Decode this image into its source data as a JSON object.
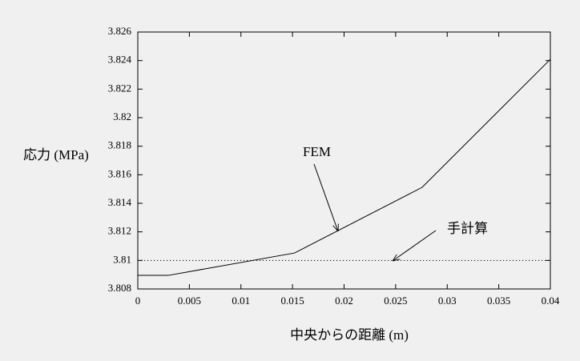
{
  "chart_data": {
    "type": "line",
    "xlabel": "中央からの距離 (m)",
    "ylabel": "応力 (MPa)",
    "series": [
      {
        "name": "FEM",
        "color": "#000000",
        "linestyle": "solid",
        "x": [
          0,
          0.00295,
          0.0152,
          0.02757,
          0.04
        ],
        "values": [
          3.80895,
          3.80895,
          3.81052,
          3.81512,
          3.82409
        ]
      },
      {
        "name": "手計算",
        "color": "#000000",
        "linestyle": "dotted",
        "x": [
          0,
          0.04
        ],
        "values": [
          3.81,
          3.81
        ]
      }
    ],
    "xlim": [
      0,
      0.04
    ],
    "xticks": [
      0,
      0.005,
      0.01,
      0.015,
      0.02,
      0.025,
      0.03,
      0.035,
      0.04
    ],
    "ylim": [
      3.808,
      3.826
    ],
    "yticks": [
      3.808,
      3.81,
      3.812,
      3.814,
      3.816,
      3.818,
      3.82,
      3.822,
      3.824,
      3.826
    ],
    "grid": false
  }
}
